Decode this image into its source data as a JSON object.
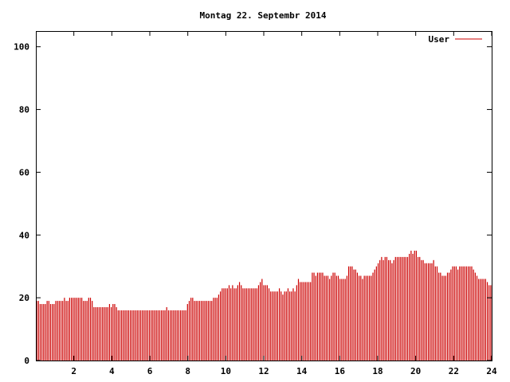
{
  "chart_data": {
    "type": "bar",
    "title": "Montag 22. Septembr 2014",
    "xlabel": "",
    "ylabel": "",
    "xlim": [
      0,
      24
    ],
    "ylim": [
      0,
      105
    ],
    "x_ticks": [
      "2",
      "4",
      "6",
      "8",
      "10",
      "12",
      "14",
      "16",
      "18",
      "20",
      "22",
      "24"
    ],
    "y_ticks": [
      "0",
      "20",
      "40",
      "60",
      "80",
      "100"
    ],
    "grid": false,
    "legend": "top-right",
    "series": [
      {
        "name": "User",
        "color": "#cc0000",
        "values": [
          19,
          19,
          18,
          18,
          18,
          18,
          19,
          19,
          18,
          18,
          18,
          19,
          19,
          19,
          19,
          19,
          20,
          19,
          19,
          20,
          20,
          20,
          20,
          20,
          20,
          20,
          20,
          19,
          19,
          19,
          20,
          20,
          19,
          17,
          17,
          17,
          17,
          17,
          17,
          17,
          17,
          17,
          18,
          17,
          18,
          18,
          17,
          16,
          16,
          16,
          16,
          16,
          16,
          16,
          16,
          16,
          16,
          16,
          16,
          16,
          16,
          16,
          16,
          16,
          16,
          16,
          16,
          16,
          16,
          16,
          16,
          16,
          16,
          16,
          16,
          17,
          16,
          16,
          16,
          16,
          16,
          16,
          16,
          16,
          16,
          16,
          16,
          18,
          19,
          20,
          20,
          19,
          19,
          19,
          19,
          19,
          19,
          19,
          19,
          19,
          19,
          19,
          20,
          20,
          20,
          21,
          22,
          23,
          23,
          23,
          23,
          24,
          23,
          24,
          23,
          23,
          24,
          25,
          24,
          23,
          23,
          23,
          23,
          23,
          23,
          23,
          23,
          23,
          24,
          25,
          26,
          24,
          24,
          24,
          23,
          22,
          22,
          22,
          22,
          22,
          23,
          22,
          21,
          22,
          22,
          23,
          22,
          22,
          23,
          22,
          24,
          26,
          25,
          25,
          25,
          25,
          25,
          25,
          25,
          28,
          28,
          27,
          28,
          28,
          28,
          28,
          27,
          27,
          27,
          26,
          27,
          28,
          28,
          27,
          27,
          26,
          26,
          26,
          26,
          27,
          30,
          30,
          30,
          29,
          29,
          28,
          27,
          27,
          26,
          27,
          27,
          27,
          27,
          27,
          28,
          29,
          30,
          31,
          32,
          33,
          32,
          33,
          33,
          32,
          32,
          31,
          32,
          33,
          33,
          33,
          33,
          33,
          33,
          33,
          33,
          34,
          35,
          34,
          35,
          35,
          33,
          33,
          32,
          32,
          31,
          31,
          31,
          31,
          31,
          32,
          30,
          30,
          28,
          28,
          27,
          27,
          27,
          28,
          28,
          29,
          30,
          30,
          30,
          29,
          30,
          30,
          30,
          30,
          30,
          30,
          30,
          30,
          29,
          28,
          27,
          26,
          26,
          26,
          26,
          26,
          25,
          24,
          24
        ]
      }
    ]
  }
}
